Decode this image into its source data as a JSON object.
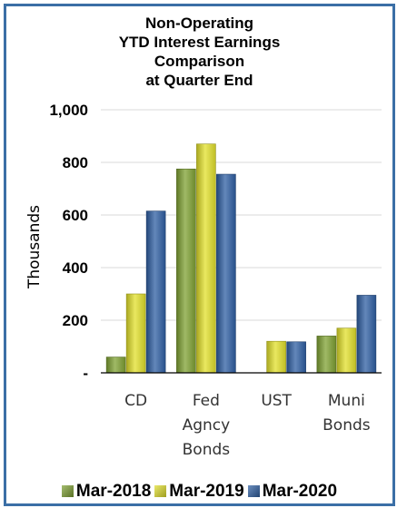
{
  "chart_data": {
    "type": "bar",
    "title_lines": [
      "Non-Operating",
      "YTD Interest Earnings",
      "Comparison",
      "at Quarter End"
    ],
    "ylabel": "Thousands",
    "xlabel": "",
    "ylim": [
      0,
      1000
    ],
    "yticks": [
      0,
      200,
      400,
      600,
      800,
      1000
    ],
    "ytick_labels": [
      "-",
      "200",
      "400",
      "600",
      "800",
      "1,000"
    ],
    "categories": [
      {
        "label_lines": [
          "CD"
        ]
      },
      {
        "label_lines": [
          "Fed",
          "Agncy",
          "Bonds"
        ]
      },
      {
        "label_lines": [
          "UST"
        ]
      },
      {
        "label_lines": [
          "Muni",
          "Bonds"
        ]
      }
    ],
    "series": [
      {
        "name": "Mar-2018",
        "color": "#7fa133",
        "values": [
          60,
          775,
          0,
          140
        ]
      },
      {
        "name": "Mar-2019",
        "color": "#e2e02b",
        "values": [
          300,
          870,
          120,
          170
        ]
      },
      {
        "name": "Mar-2020",
        "color": "#2f5fa3",
        "values": [
          615,
          755,
          118,
          295
        ]
      }
    ],
    "grid": true,
    "legend_position": "bottom"
  }
}
